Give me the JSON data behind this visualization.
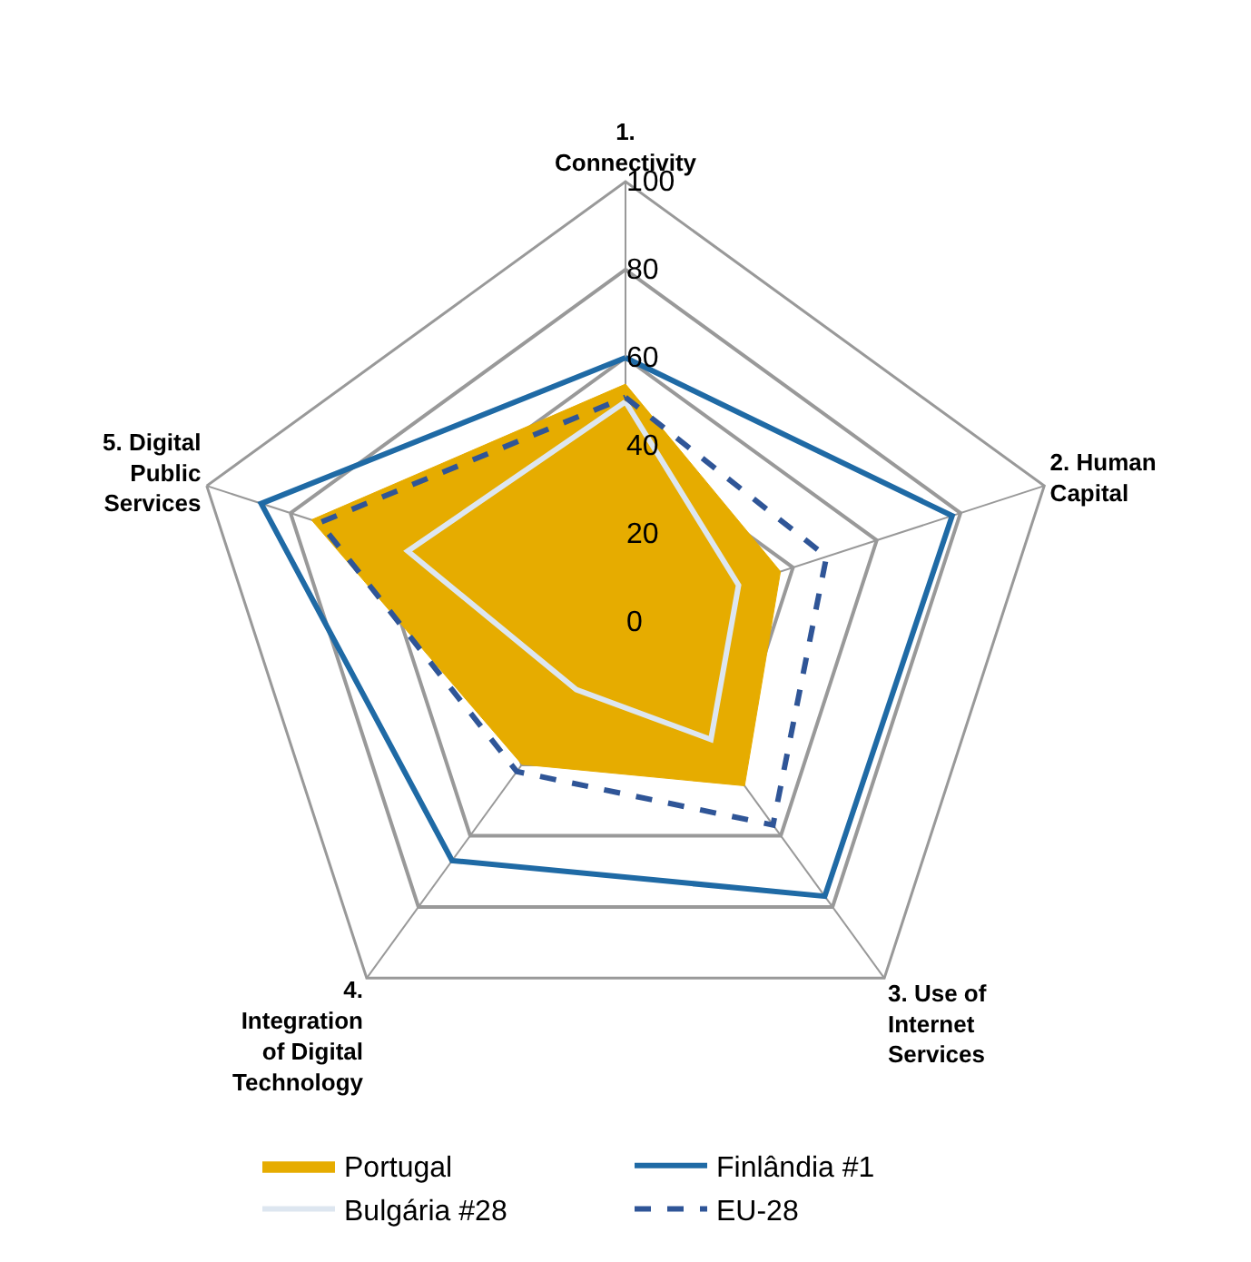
{
  "chart_data": {
    "type": "radar",
    "categories": [
      "1. Connectivity",
      "2. Human Capital",
      "3. Use of Internet Services",
      "4. Integration of Digital Technology",
      "5. Digital Public Services"
    ],
    "ylim": [
      0,
      100
    ],
    "yticks": [
      0,
      20,
      40,
      60,
      80,
      100
    ],
    "grid": true,
    "legend": "bottom",
    "series": [
      {
        "name": "Portugal",
        "type": "area",
        "color": "#e6ac00",
        "values": [
          54,
          37,
          46,
          40,
          75
        ]
      },
      {
        "name": "Finlândia #1",
        "color": "#1f6aa5",
        "values": [
          60,
          78,
          77,
          67,
          87
        ]
      },
      {
        "name": "Bulgária #28",
        "color": "#dde6f0",
        "values": [
          50,
          27,
          33,
          19,
          52
        ]
      },
      {
        "name": "EU-28",
        "color": "#2f5597",
        "line_style": "dashed",
        "values": [
          51,
          48,
          57,
          42,
          73
        ]
      }
    ]
  }
}
